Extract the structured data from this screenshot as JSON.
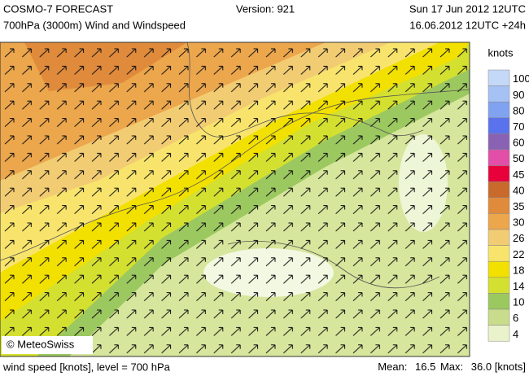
{
  "header": {
    "title": "COSMO-7 FORECAST",
    "subtitle": "700hPa (3000m) Wind and Windspeed",
    "version": "Version: 921",
    "valid": "Sun 17 Jun 2012 12UTC",
    "run": "16.06.2012 12UTC +24h",
    "valid_color": "#e00000"
  },
  "map": {
    "copyright": "© MeteoSwiss"
  },
  "legend": {
    "unit": "knots",
    "items": [
      {
        "label": "100",
        "color": "#c4d8f8"
      },
      {
        "label": "90",
        "color": "#a6c2f4"
      },
      {
        "label": "80",
        "color": "#80a2f0"
      },
      {
        "label": "70",
        "color": "#5a72ec"
      },
      {
        "label": "60",
        "color": "#8a62b4"
      },
      {
        "label": "50",
        "color": "#e24ea8"
      },
      {
        "label": "45",
        "color": "#e8003a"
      },
      {
        "label": "40",
        "color": "#c86a2c"
      },
      {
        "label": "35",
        "color": "#e08a3c"
      },
      {
        "label": "30",
        "color": "#eca64c"
      },
      {
        "label": "26",
        "color": "#f2cc72"
      },
      {
        "label": "22",
        "color": "#f8e46c"
      },
      {
        "label": "18",
        "color": "#f2e000"
      },
      {
        "label": "14",
        "color": "#d4e030"
      },
      {
        "label": "10",
        "color": "#9cc860"
      },
      {
        "label": "6",
        "color": "#c8dc8c"
      },
      {
        "label": "4",
        "color": "#eaf2cc"
      }
    ]
  },
  "footer": {
    "left": "wind speed [knots], level = 700 hPa",
    "mean_label": "Mean:",
    "mean": "16.5",
    "max_label": "Max:",
    "max": "36.0",
    "unit": "[knots]"
  }
}
